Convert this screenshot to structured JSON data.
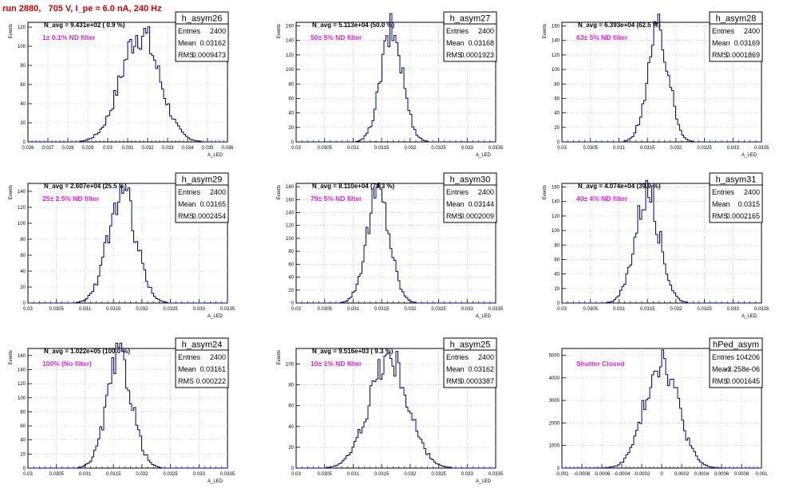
{
  "header": {
    "run_title": "run 2880,   705 V, I_pe ≈ 6.0 nA, 240 Hz",
    "title_color": "#d40000"
  },
  "colors": {
    "histogram_line": "#00008b",
    "n_avg_text": "#000000",
    "filter_text": "#e020e0",
    "grid": "#b8b8b8"
  },
  "chart_data": [
    {
      "type": "bar",
      "name": "h_asym26",
      "n_avg_label": "N_avg = 9.431e+02 ( 0.9 %)",
      "filter_label": "1± 0.1% ND filter",
      "stats": {
        "entries_label": "Entries",
        "entries": "2400",
        "mean_label": "Mean",
        "mean": "0.03162",
        "rms_label": "RMS",
        "rms": "0.0009473"
      },
      "xlabel": "A_LED",
      "ylabel": "Events",
      "xlim": [
        0.026,
        0.036
      ],
      "ylim": [
        0,
        125
      ],
      "x_ticks": [
        0.026,
        0.027,
        0.028,
        0.029,
        0.03,
        0.031,
        0.032,
        0.033,
        0.034,
        0.035,
        0.036
      ],
      "x_tick_labels": [
        "0.026",
        "0.027",
        "0.028",
        "0.029",
        "0.03",
        "0.031",
        "0.032",
        "0.033",
        "0.034",
        "0.035",
        "0.036"
      ],
      "y_ticks": [
        0,
        20,
        40,
        60,
        80,
        100,
        120
      ],
      "grid": true
    },
    {
      "type": "bar",
      "name": "h_asym27",
      "n_avg_label": "N_avg = 5.113e+04 (50.0 %)",
      "filter_label": "50± 5% ND filter",
      "stats": {
        "entries_label": "Entries",
        "entries": "2400",
        "mean_label": "Mean",
        "mean": "0.03168",
        "rms_label": "RMS",
        "rms": "0.0001923"
      },
      "xlabel": "A_LED",
      "ylabel": "Events",
      "xlim": [
        0.03,
        0.0335
      ],
      "ylim": [
        0,
        165
      ],
      "x_ticks": [
        0.03,
        0.0305,
        0.031,
        0.0315,
        0.032,
        0.0325,
        0.033,
        0.0335
      ],
      "x_tick_labels": [
        "0.03",
        "0.0305",
        "0.031",
        "0.0315",
        "0.032",
        "0.0325",
        "0.033",
        "0.0335"
      ],
      "y_ticks": [
        0,
        20,
        40,
        60,
        80,
        100,
        120,
        140,
        160
      ],
      "grid": true
    },
    {
      "type": "bar",
      "name": "h_asym28",
      "n_avg_label": "N_avg = 6.393e+04 (62.5 %)",
      "filter_label": "63± 5% ND filter",
      "stats": {
        "entries_label": "Entries",
        "entries": "2400",
        "mean_label": "Mean",
        "mean": "0.03169",
        "rms_label": "RMS",
        "rms": "0.0001869"
      },
      "xlabel": "A_LED",
      "ylabel": "Events",
      "xlim": [
        0.03,
        0.0335
      ],
      "ylim": [
        0,
        165
      ],
      "x_ticks": [
        0.03,
        0.0305,
        0.031,
        0.0315,
        0.032,
        0.0325,
        0.033,
        0.0335
      ],
      "x_tick_labels": [
        "0.03",
        "0.0305",
        "0.031",
        "0.0315",
        "0.032",
        "0.0325",
        "0.033",
        "0.0335"
      ],
      "y_ticks": [
        0,
        20,
        40,
        60,
        80,
        100,
        120,
        140,
        160
      ],
      "grid": true
    },
    {
      "type": "bar",
      "name": "h_asym29",
      "n_avg_label": "N_avg = 2.607e+04 (25.5 %)",
      "filter_label": "25± 2.5% ND filter",
      "stats": {
        "entries_label": "Entries",
        "entries": "2400",
        "mean_label": "Mean",
        "mean": "0.03165",
        "rms_label": "RMS",
        "rms": "0.0002454"
      },
      "xlabel": "A_LED",
      "ylabel": "Events",
      "xlim": [
        0.03,
        0.0335
      ],
      "ylim": [
        0,
        150
      ],
      "x_ticks": [
        0.03,
        0.0305,
        0.031,
        0.0315,
        0.032,
        0.0325,
        0.033,
        0.0335
      ],
      "x_tick_labels": [
        "0.03",
        "0.0305",
        "0.031",
        "0.0315",
        "0.032",
        "0.0325",
        "0.033",
        "0.0335"
      ],
      "y_ticks": [
        0,
        20,
        40,
        60,
        80,
        100,
        120,
        140
      ],
      "grid": true
    },
    {
      "type": "bar",
      "name": "h_asym30",
      "n_avg_label": "N_avg = 8.110e+04 (79.3 %)",
      "filter_label": "79± 5% ND filter",
      "stats": {
        "entries_label": "Entries",
        "entries": "2400",
        "mean_label": "Mean",
        "mean": "0.03144",
        "rms_label": "RMS",
        "rms": "0.0002009"
      },
      "xlabel": "A_LED",
      "ylabel": "Events",
      "xlim": [
        0.03,
        0.0335
      ],
      "ylim": [
        0,
        185
      ],
      "x_ticks": [
        0.03,
        0.0305,
        0.031,
        0.0315,
        0.032,
        0.0325,
        0.033,
        0.0335
      ],
      "x_tick_labels": [
        "0.03",
        "0.0305",
        "0.031",
        "0.0315",
        "0.032",
        "0.0325",
        "0.033",
        "0.0335"
      ],
      "y_ticks": [
        0,
        20,
        40,
        60,
        80,
        100,
        120,
        140,
        160,
        180
      ],
      "grid": true
    },
    {
      "type": "bar",
      "name": "h_asym31",
      "n_avg_label": "N_avg = 4.074e+04 (39.9 %)",
      "filter_label": "40± 4% ND filter",
      "stats": {
        "entries_label": "Entries",
        "entries": "2400",
        "mean_label": "Mean",
        "mean": "0.0315",
        "rms_label": "RMS",
        "rms": "0.0002165"
      },
      "xlabel": "A_LED",
      "ylabel": "Events",
      "xlim": [
        0.03,
        0.0335
      ],
      "ylim": [
        0,
        165
      ],
      "x_ticks": [
        0.03,
        0.0305,
        0.031,
        0.0315,
        0.032,
        0.0325,
        0.033,
        0.0335
      ],
      "x_tick_labels": [
        "0.03",
        "0.0305",
        "0.031",
        "0.0315",
        "0.032",
        "0.0325",
        "0.033",
        "0.0335"
      ],
      "y_ticks": [
        0,
        20,
        40,
        60,
        80,
        100,
        120,
        140,
        160
      ],
      "grid": true
    },
    {
      "type": "bar",
      "name": "h_asym24",
      "n_avg_label": "N_avg = 1.022e+05 (100.0 %)",
      "filter_label": "100% (No filter)",
      "stats": {
        "entries_label": "Entries",
        "entries": "2400",
        "mean_label": "Mean",
        "mean": "0.03161",
        "rms_label": "RMS",
        "rms": "0.000222"
      },
      "xlabel": "A_LED",
      "ylabel": "Events",
      "xlim": [
        0.03,
        0.0335
      ],
      "ylim": [
        0,
        170
      ],
      "x_ticks": [
        0.03,
        0.0305,
        0.031,
        0.0315,
        0.032,
        0.0325,
        0.033,
        0.0335
      ],
      "x_tick_labels": [
        "0.03",
        "0.0305",
        "0.031",
        "0.0315",
        "0.032",
        "0.0325",
        "0.033",
        "0.0335"
      ],
      "y_ticks": [
        0,
        20,
        40,
        60,
        80,
        100,
        120,
        140,
        160
      ],
      "grid": true
    },
    {
      "type": "bar",
      "name": "h_asym25",
      "n_avg_label": "N_avg = 9.516e+03 ( 9.3 %)",
      "filter_label": "10± 1% ND filter",
      "stats": {
        "entries_label": "Entries",
        "entries": "2400",
        "mean_label": "Mean",
        "mean": "0.03162",
        "rms_label": "RMS",
        "rms": "0.0003387"
      },
      "xlabel": "A_LED",
      "ylabel": "Events",
      "xlim": [
        0.03,
        0.0335
      ],
      "ylim": [
        0,
        115
      ],
      "x_ticks": [
        0.03,
        0.0305,
        0.031,
        0.0315,
        0.032,
        0.0325,
        0.033,
        0.0335
      ],
      "x_tick_labels": [
        "0.03",
        "0.0305",
        "0.031",
        "0.0315",
        "0.032",
        "0.0325",
        "0.033",
        "0.0335"
      ],
      "y_ticks": [
        0,
        20,
        40,
        60,
        80,
        100
      ],
      "grid": true
    },
    {
      "type": "bar",
      "name": "hPed_asym",
      "n_avg_label": "",
      "filter_label": "Shutter Closed",
      "stats": {
        "entries_label": "Entries",
        "entries": "104206",
        "mean_label": "Mean",
        "mean": "-3.258e-06",
        "rms_label": "RMS",
        "rms": "0.0001645"
      },
      "xlabel": "",
      "ylabel": "",
      "xlim": [
        -0.001,
        0.001
      ],
      "ylim": [
        0,
        5300
      ],
      "x_ticks": [
        -0.001,
        -0.0008,
        -0.0006,
        -0.0004,
        -0.0002,
        0,
        0.0002,
        0.0004,
        0.0006,
        0.0008,
        0.001
      ],
      "x_tick_labels": [
        "-0.001",
        "-0.0008",
        "-0.0006",
        "-0.0004",
        "-0.0002",
        "0",
        "0.0002",
        "0.0004",
        "0.0006",
        "0.0008",
        "0.001"
      ],
      "y_ticks": [
        0,
        1000,
        2000,
        3000,
        4000,
        5000
      ],
      "grid": true
    }
  ]
}
